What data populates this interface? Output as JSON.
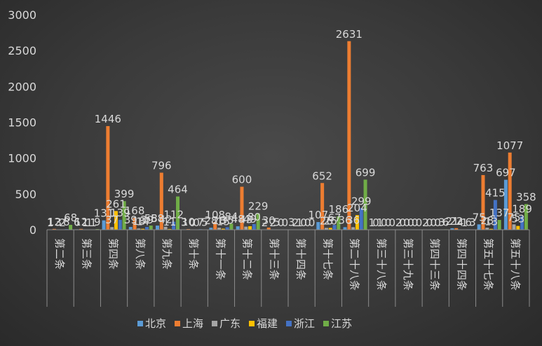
{
  "chart_data": {
    "type": "bar",
    "title": "",
    "xlabel": "",
    "ylabel": "",
    "ylim": [
      0,
      3000
    ],
    "yticks": [
      0,
      500,
      1000,
      1500,
      2000,
      2500,
      3000
    ],
    "grid": false,
    "legend_position": "bottom",
    "categories": [
      "第二条",
      "第三条",
      "第四条",
      "第八条",
      "第九条",
      "第十条",
      "第十一条",
      "第十二条",
      "第十三条",
      "第十四条",
      "第十七条",
      "第二十八条",
      "第三十八条",
      "第三十九条",
      "第四十三条",
      "第四十四条",
      "第五十七条",
      "第五十八条"
    ],
    "series": [
      {
        "name": "北京",
        "color": "#5b9bd5",
        "values": [
          1,
          6,
          131,
          39,
          58,
          3,
          28,
          48,
          2,
          3,
          107,
          36,
          1,
          2,
          2,
          21,
          75,
          697
        ]
      },
      {
        "name": "上海",
        "color": "#ed7d31",
        "values": [
          12,
          12,
          1446,
          168,
          796,
          10,
          108,
          600,
          30,
          2,
          652,
          2631,
          0,
          0,
          0,
          22,
          763,
          1077
        ]
      },
      {
        "name": "广东",
        "color": "#a5a5a5",
        "values": [
          3,
          1,
          37,
          18,
          42,
          0,
          28,
          43,
          2,
          1,
          26,
          36,
          1,
          0,
          0,
          4,
          28,
          75
        ]
      },
      {
        "name": "福建",
        "color": "#ffc000",
        "values": [
          2,
          1,
          261,
          14,
          11,
          0,
          15,
          49,
          5,
          0,
          26,
          204,
          0,
          0,
          0,
          1,
          13,
          53
        ]
      },
      {
        "name": "浙江",
        "color": "#4472c4",
        "values": [
          8,
          1,
          139,
          39,
          112,
          7,
          35,
          80,
          0,
          0,
          67,
          299,
          0,
          0,
          3,
          6,
          415,
          189
        ]
      },
      {
        "name": "江苏",
        "color": "#70ad47",
        "values": [
          68,
          9,
          399,
          58,
          464,
          5,
          84,
          229,
          0,
          0,
          186,
          699,
          0,
          0,
          6,
          3,
          137,
          358
        ]
      }
    ]
  }
}
